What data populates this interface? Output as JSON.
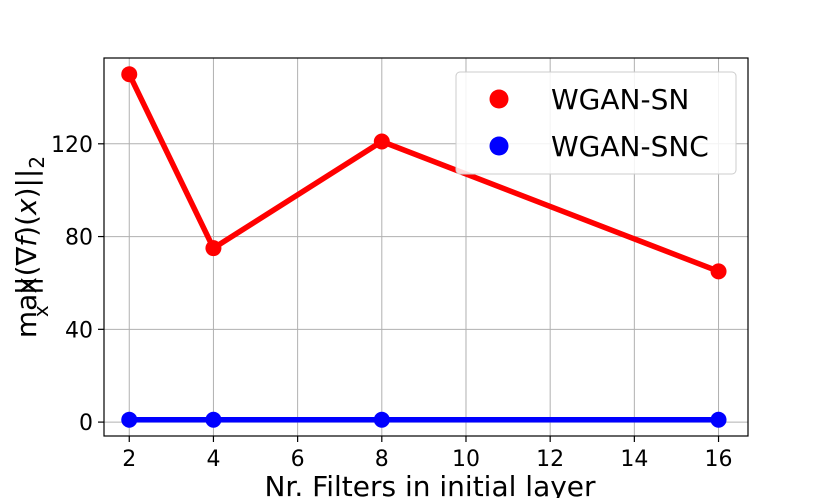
{
  "chart_data": {
    "type": "line",
    "xlabel": "Nr. Filters in initial layer",
    "ylabel": "max_x ||(∇f)(x)||_2",
    "x": [
      2,
      4,
      8,
      16
    ],
    "xticks": [
      2,
      4,
      6,
      8,
      10,
      12,
      14,
      16
    ],
    "yticks": [
      0,
      40,
      80,
      120
    ],
    "xlim": [
      1.4,
      16.7
    ],
    "ylim": [
      -6,
      157
    ],
    "grid": true,
    "legend_position": "top-right",
    "series": [
      {
        "name": "WGAN-SN",
        "color": "#ff0000",
        "values": [
          150,
          75,
          121,
          65
        ]
      },
      {
        "name": "WGAN-SNC",
        "color": "#0000ff",
        "values": [
          1,
          1,
          1,
          1
        ]
      }
    ]
  }
}
